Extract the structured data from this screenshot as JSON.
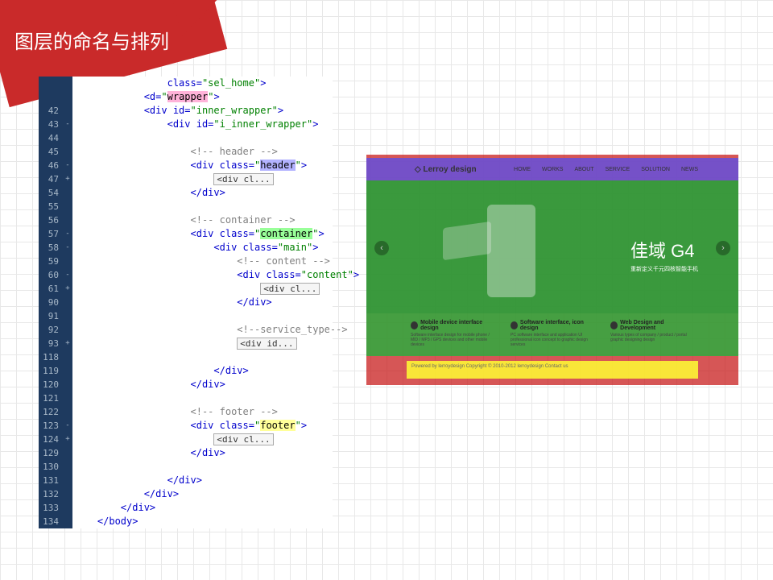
{
  "title": "图层的命名与排列",
  "code": {
    "lines": [
      {
        "num": "",
        "fold": "",
        "indent": 4,
        "parts": [
          {
            "t": "tag",
            "v": "class="
          },
          {
            "t": "str",
            "v": "\"sel_home\""
          },
          {
            "t": "tag",
            "v": ">"
          }
        ]
      },
      {
        "num": "",
        "fold": "",
        "indent": 3,
        "parts": [
          {
            "t": "tag",
            "v": "<d="
          },
          {
            "t": "str",
            "v": "\""
          },
          {
            "t": "hl-wrapper",
            "v": "wrapper"
          },
          {
            "t": "str",
            "v": "\""
          },
          {
            "t": "tag",
            "v": ">"
          }
        ]
      },
      {
        "num": "42",
        "fold": "",
        "indent": 3,
        "parts": [
          {
            "t": "tag",
            "v": "<div "
          },
          {
            "t": "attr",
            "v": "id="
          },
          {
            "t": "str",
            "v": "\"inner_wrapper\""
          },
          {
            "t": "tag",
            "v": ">"
          }
        ]
      },
      {
        "num": "43",
        "fold": "-",
        "indent": 4,
        "parts": [
          {
            "t": "tag",
            "v": "<div "
          },
          {
            "t": "attr",
            "v": "id="
          },
          {
            "t": "str",
            "v": "\"i_inner_wrapper\""
          },
          {
            "t": "tag",
            "v": ">"
          }
        ]
      },
      {
        "num": "44",
        "fold": "",
        "indent": 0,
        "parts": []
      },
      {
        "num": "45",
        "fold": "",
        "indent": 5,
        "parts": [
          {
            "t": "comment",
            "v": "<!-- header -->"
          }
        ]
      },
      {
        "num": "46",
        "fold": "-",
        "indent": 5,
        "parts": [
          {
            "t": "tag",
            "v": "<div "
          },
          {
            "t": "attr",
            "v": "class="
          },
          {
            "t": "str",
            "v": "\""
          },
          {
            "t": "hl-header",
            "v": "header"
          },
          {
            "t": "str",
            "v": "\""
          },
          {
            "t": "tag",
            "v": ">"
          }
        ]
      },
      {
        "num": "47",
        "fold": "+",
        "indent": 6,
        "parts": [
          {
            "t": "collapsed",
            "v": "<div cl..."
          }
        ]
      },
      {
        "num": "54",
        "fold": "",
        "indent": 5,
        "parts": [
          {
            "t": "tag",
            "v": "</div>"
          }
        ]
      },
      {
        "num": "55",
        "fold": "",
        "indent": 0,
        "parts": []
      },
      {
        "num": "56",
        "fold": "",
        "indent": 5,
        "parts": [
          {
            "t": "comment",
            "v": "<!-- container -->"
          }
        ]
      },
      {
        "num": "57",
        "fold": "-",
        "indent": 5,
        "parts": [
          {
            "t": "tag",
            "v": "<div "
          },
          {
            "t": "attr",
            "v": "class="
          },
          {
            "t": "str",
            "v": "\""
          },
          {
            "t": "hl-container",
            "v": "container"
          },
          {
            "t": "str",
            "v": "\""
          },
          {
            "t": "tag",
            "v": ">"
          }
        ]
      },
      {
        "num": "58",
        "fold": "-",
        "indent": 6,
        "parts": [
          {
            "t": "tag",
            "v": "<div "
          },
          {
            "t": "attr",
            "v": "class="
          },
          {
            "t": "str",
            "v": "\"main\""
          },
          {
            "t": "tag",
            "v": ">"
          }
        ]
      },
      {
        "num": "59",
        "fold": "",
        "indent": 7,
        "parts": [
          {
            "t": "comment",
            "v": "<!-- content -->"
          }
        ]
      },
      {
        "num": "60",
        "fold": "-",
        "indent": 7,
        "parts": [
          {
            "t": "tag",
            "v": "<div "
          },
          {
            "t": "attr",
            "v": "class="
          },
          {
            "t": "str",
            "v": "\"content\""
          },
          {
            "t": "tag",
            "v": ">"
          }
        ]
      },
      {
        "num": "61",
        "fold": "+",
        "indent": 8,
        "parts": [
          {
            "t": "collapsed",
            "v": "<div cl..."
          }
        ]
      },
      {
        "num": "90",
        "fold": "",
        "indent": 7,
        "parts": [
          {
            "t": "tag",
            "v": "</div>"
          }
        ]
      },
      {
        "num": "91",
        "fold": "",
        "indent": 0,
        "parts": []
      },
      {
        "num": "92",
        "fold": "",
        "indent": 7,
        "parts": [
          {
            "t": "comment",
            "v": "<!--service_type-->"
          }
        ]
      },
      {
        "num": "93",
        "fold": "+",
        "indent": 7,
        "parts": [
          {
            "t": "collapsed",
            "v": "<div id..."
          }
        ]
      },
      {
        "num": "118",
        "fold": "",
        "indent": 0,
        "parts": []
      },
      {
        "num": "119",
        "fold": "",
        "indent": 6,
        "parts": [
          {
            "t": "tag",
            "v": "</div>"
          }
        ]
      },
      {
        "num": "120",
        "fold": "",
        "indent": 5,
        "parts": [
          {
            "t": "tag",
            "v": "</div>"
          }
        ]
      },
      {
        "num": "121",
        "fold": "",
        "indent": 0,
        "parts": []
      },
      {
        "num": "122",
        "fold": "",
        "indent": 5,
        "parts": [
          {
            "t": "comment",
            "v": "<!-- footer -->"
          }
        ]
      },
      {
        "num": "123",
        "fold": "-",
        "indent": 5,
        "parts": [
          {
            "t": "tag",
            "v": "<div "
          },
          {
            "t": "attr",
            "v": "class="
          },
          {
            "t": "str",
            "v": "\""
          },
          {
            "t": "hl-footer",
            "v": "footer"
          },
          {
            "t": "str",
            "v": "\""
          },
          {
            "t": "tag",
            "v": ">"
          }
        ]
      },
      {
        "num": "124",
        "fold": "+",
        "indent": 6,
        "parts": [
          {
            "t": "collapsed",
            "v": "<div cl..."
          }
        ]
      },
      {
        "num": "129",
        "fold": "",
        "indent": 5,
        "parts": [
          {
            "t": "tag",
            "v": "</div>"
          }
        ]
      },
      {
        "num": "130",
        "fold": "",
        "indent": 0,
        "parts": []
      },
      {
        "num": "131",
        "fold": "",
        "indent": 4,
        "parts": [
          {
            "t": "tag",
            "v": "</div>"
          }
        ]
      },
      {
        "num": "132",
        "fold": "",
        "indent": 3,
        "parts": [
          {
            "t": "tag",
            "v": "</div>"
          }
        ]
      },
      {
        "num": "133",
        "fold": "",
        "indent": 2,
        "parts": [
          {
            "t": "tag",
            "v": "</div>"
          }
        ]
      },
      {
        "num": "134",
        "fold": "",
        "indent": 1,
        "parts": [
          {
            "t": "tag",
            "v": "</body>"
          }
        ]
      }
    ]
  },
  "preview": {
    "logo": "◇ Lerroy design",
    "nav": [
      "HOME",
      "WORKS",
      "ABOUT",
      "SERVICE",
      "SOLUTION",
      "NEWS"
    ],
    "hero_title": "佳域 G4",
    "hero_sub": "重新定义千元四核智能手机",
    "services": [
      {
        "title": "Mobile device interface design",
        "desc": "Software interface design for mobile phone / MID / MP3 / GPS devices and other mobile devices"
      },
      {
        "title": "Software interface, icon design",
        "desc": "PC software interface and application UI professional icon concept to graphic design services"
      },
      {
        "title": "Web Design and Development",
        "desc": "Various types of company / product / portal graphic designing design"
      }
    ],
    "footer_text": "Powered by lerroydesign Copyright © 2010-2012  lerroydesign  Contact us"
  },
  "colors": {
    "title_bg": "#c92a2a",
    "wrapper_hl": "#ffb3d9",
    "header_hl": "#b3b3ff",
    "container_hl": "#99ff99",
    "footer_hl": "#ffff99",
    "code_tag": "#0000cc",
    "code_str": "#008000",
    "code_comment": "#808080",
    "gutter_bg": "#1e3a5f"
  }
}
